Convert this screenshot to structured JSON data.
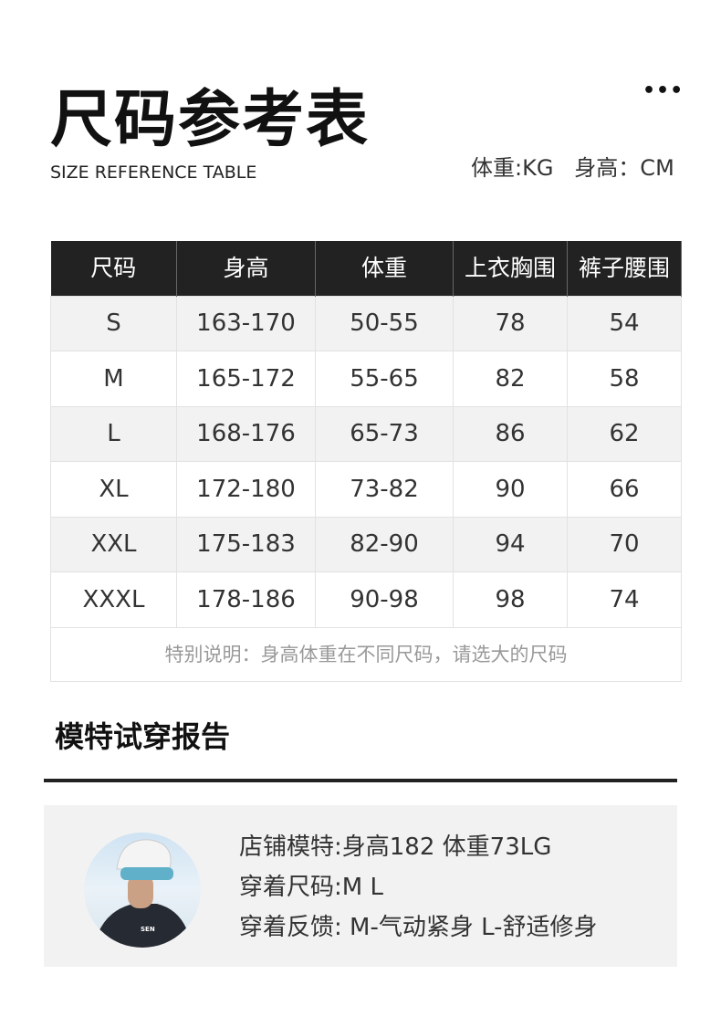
{
  "header": {
    "title": "尺码参考表",
    "subtitle": "SIZE REFERENCE TABLE",
    "more": "•••",
    "units": "体重:KG   身高：CM"
  },
  "table": {
    "columns": [
      "尺码",
      "身高",
      "体重",
      "上衣胸围",
      "裤子腰围"
    ],
    "rows": [
      [
        "S",
        "163-170",
        "50-55",
        "78",
        "54"
      ],
      [
        "M",
        "165-172",
        "55-65",
        "82",
        "58"
      ],
      [
        "L",
        "168-176",
        "65-73",
        "86",
        "62"
      ],
      [
        "XL",
        "172-180",
        "73-82",
        "90",
        "66"
      ],
      [
        "XXL",
        "175-183",
        "82-90",
        "94",
        "70"
      ],
      [
        "XXXL",
        "178-186",
        "90-98",
        "98",
        "74"
      ]
    ],
    "note": "特别说明：身高体重在不同尺码，请选大的尺码"
  },
  "model": {
    "title": "模特试穿报告",
    "lines": [
      "店铺模特:身高182  体重73LG",
      "穿着尺码:M L",
      "穿着反馈: M-气动紧身  L-舒适修身"
    ],
    "jersey_logo": "SEN"
  }
}
